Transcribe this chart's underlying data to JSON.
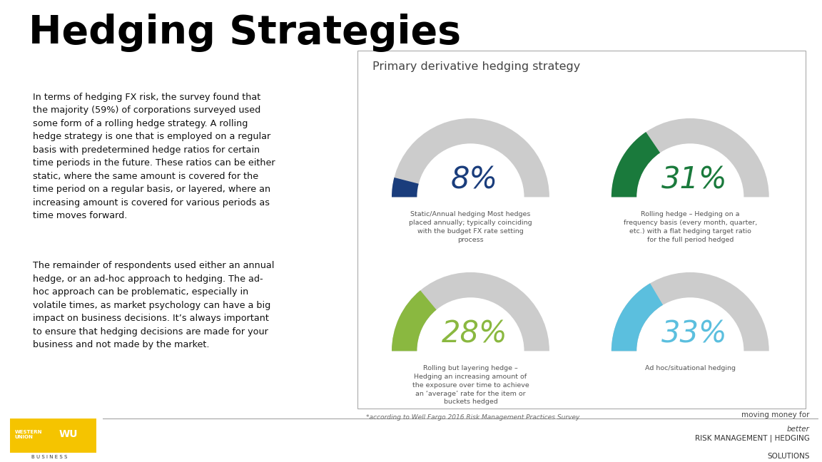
{
  "title": "Hedging Strategies",
  "body_text_1": "In terms of hedging FX risk, the survey found that\nthe majority (59%) of corporations surveyed used\nsome form of a rolling hedge strategy. A rolling\nhedge strategy is one that is employed on a regular\nbasis with predetermined hedge ratios for certain\ntime periods in the future. These ratios can be either\nstatic, where the same amount is covered for the\ntime period on a regular basis, or layered, where an\nincreasing amount is covered for various periods as\ntime moves forward.",
  "body_text_2": "The remainder of respondents used either an annual\nhedge, or an ad-hoc approach to hedging. The ad-\nhoc approach can be problematic, especially in\nvolatile times, as market psychology can have a big\nimpact on business decisions. It’s always important\nto ensure that hedging decisions are made for your\nbusiness and not made by the market.",
  "chart_title": "Primary derivative hedging strategy",
  "gauges": [
    {
      "value": 8,
      "label": "8%",
      "color": "#1a3d7c",
      "description": "Static/Annual hedging Most hedges\nplaced annually; typically coinciding\nwith the budget FX rate setting\nprocess"
    },
    {
      "value": 31,
      "label": "31%",
      "color": "#1a7a3c",
      "description": "Rolling hedge – Hedging on a\nfrequency basis (every month, quarter,\netc.) with a flat hedging target ratio\nfor the full period hedged"
    },
    {
      "value": 28,
      "label": "28%",
      "color": "#8ab840",
      "description": "Rolling but layering hedge –\nHedging an increasing amount of\nthe exposure over time to achieve\nan ‘average’ rate for the item or\nbuckets hedged"
    },
    {
      "value": 33,
      "label": "33%",
      "color": "#5bbfde",
      "description": "Ad hoc/situational hedging"
    }
  ],
  "gauge_bg_color": "#cccccc",
  "footnote": "*according to Well Fargo 2016 Risk Management Practices Survey",
  "footer_text": "moving money for",
  "footer_italic": "better",
  "footer_main": "RISK MANAGEMENT | HEDGING",
  "footer_sub": "SOLUTIONS",
  "bg_color": "#ffffff"
}
